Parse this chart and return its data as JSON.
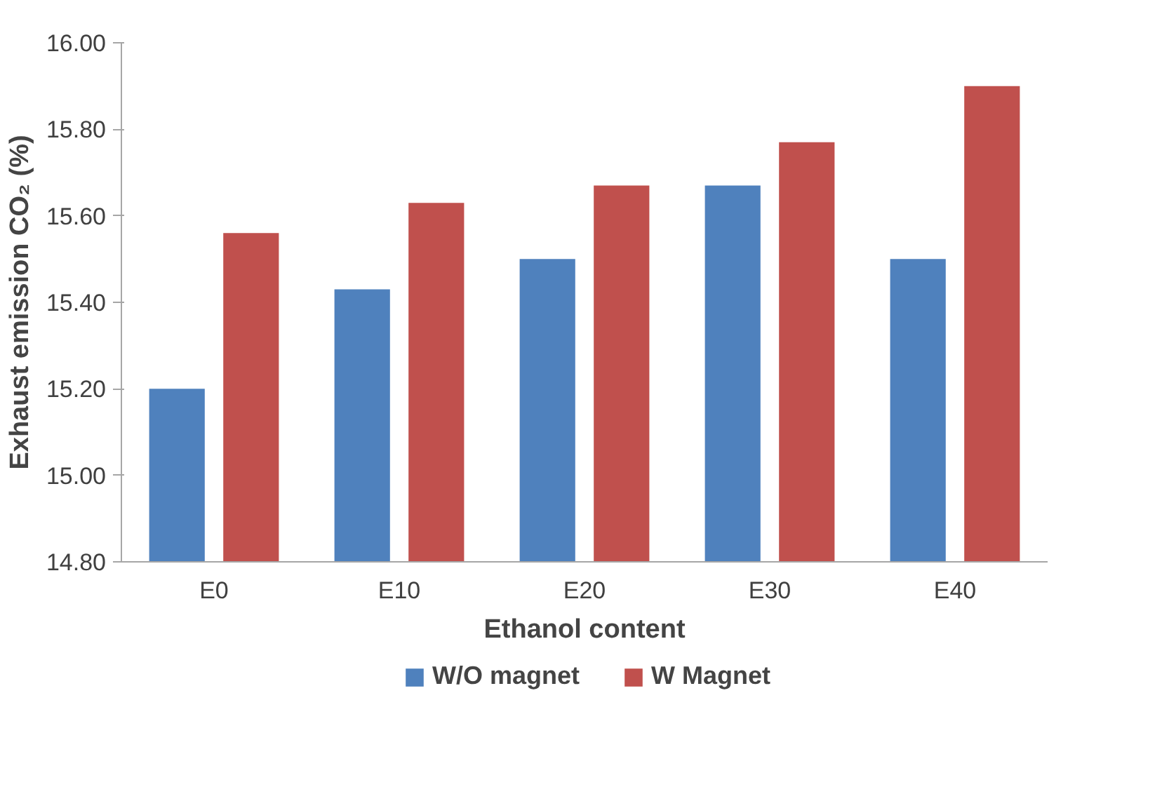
{
  "chart_data": {
    "type": "bar",
    "xlabel": "Ethanol content",
    "ylabel": "Exhaust emission CO₂ (%)",
    "categories": [
      "E0",
      "E10",
      "E20",
      "E30",
      "E40"
    ],
    "series": [
      {
        "name": "W/O magnet",
        "color": "#4f81bd",
        "values": [
          15.2,
          15.43,
          15.5,
          15.67,
          15.5
        ]
      },
      {
        "name": "W Magnet",
        "color": "#c0504d",
        "values": [
          15.56,
          15.63,
          15.67,
          15.77,
          15.9
        ]
      }
    ],
    "ylim": [
      14.8,
      16.0
    ],
    "yticks": [
      {
        "value": 14.8,
        "label": "14.80"
      },
      {
        "value": 15.0,
        "label": "15.00"
      },
      {
        "value": 15.2,
        "label": "15.20"
      },
      {
        "value": 15.4,
        "label": "15.40"
      },
      {
        "value": 15.6,
        "label": "15.60"
      },
      {
        "value": 15.8,
        "label": "15.80"
      },
      {
        "value": 16.0,
        "label": "16.00"
      }
    ],
    "grid": false,
    "legend": "bottom"
  }
}
